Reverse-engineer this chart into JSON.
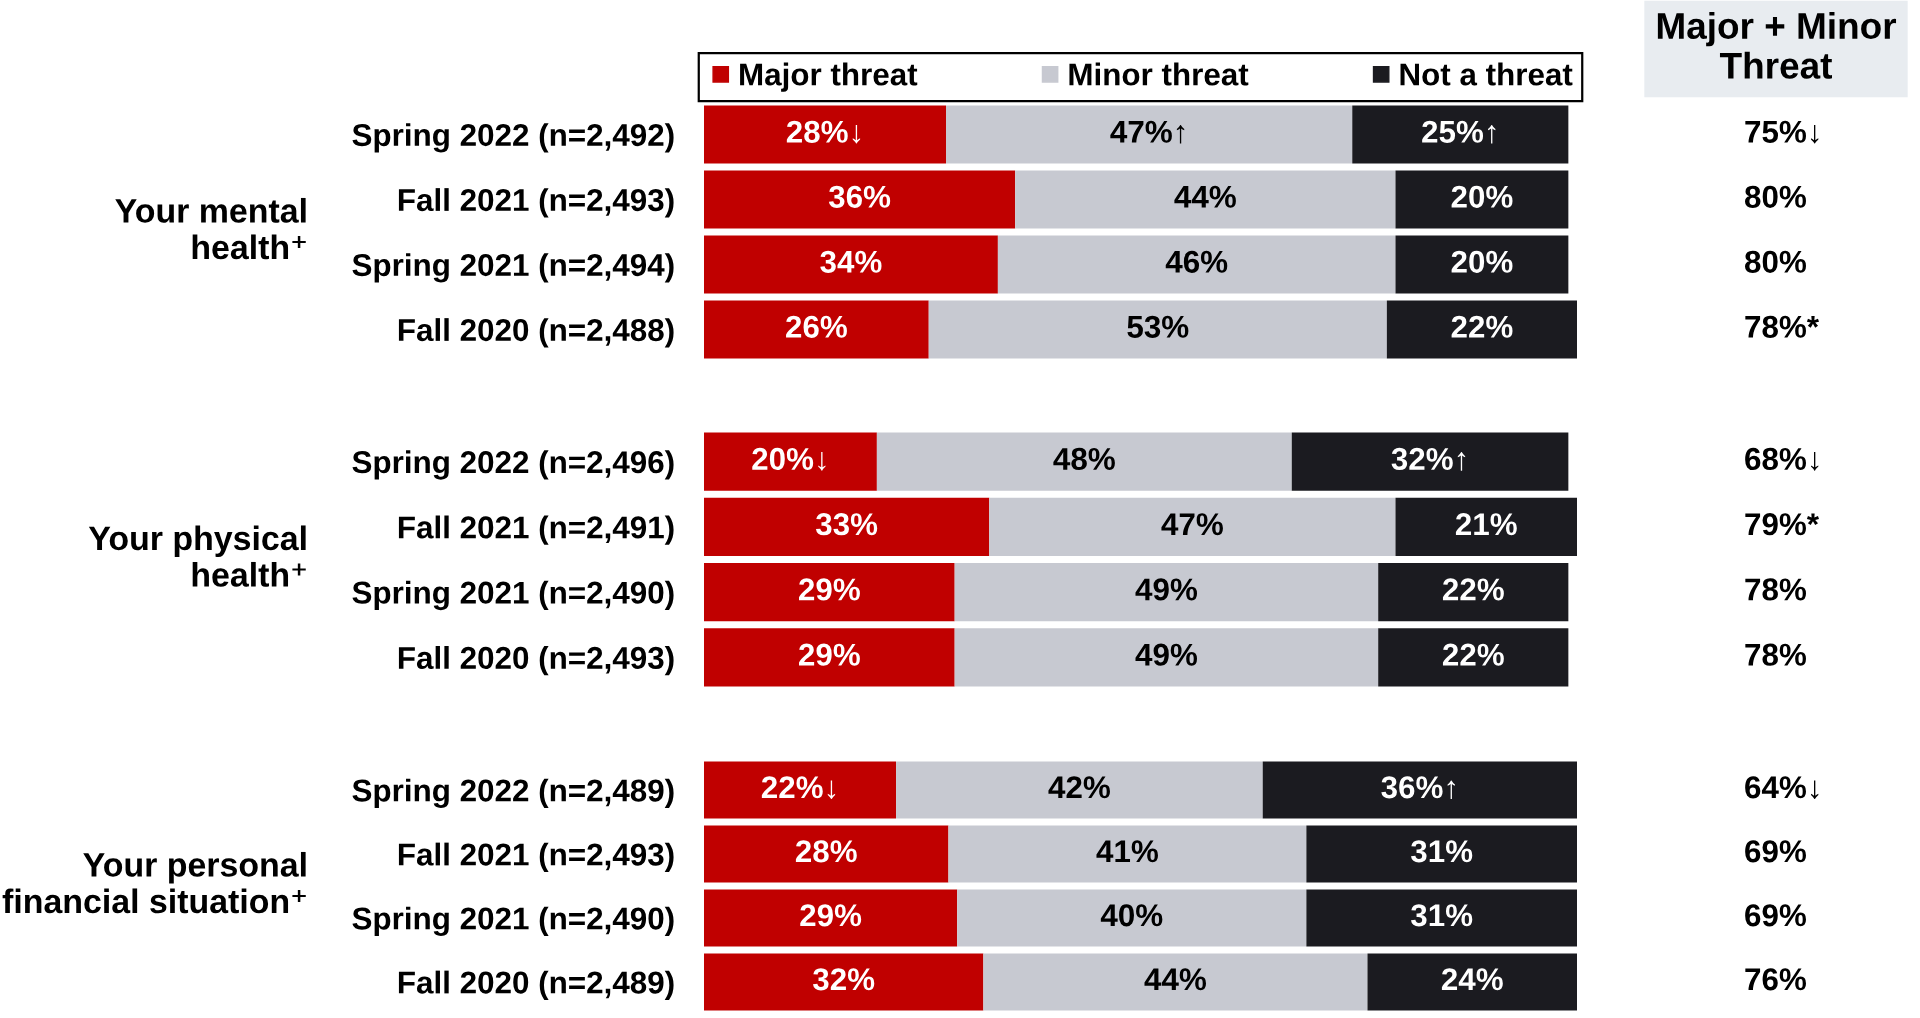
{
  "chart_data": [
    {
      "type": "bar",
      "orientation": "horizontal",
      "stacked": true,
      "ylabel": "Your mental health⁺",
      "categories": [
        "Spring 2022 (n=2,492)",
        "Fall 2021 (n=2,493)",
        "Spring 2021 (n=2,494)",
        "Fall 2020 (n=2,488)"
      ],
      "series": [
        {
          "name": "Major threat",
          "color": "#c00000",
          "values": [
            28,
            36,
            34,
            26
          ],
          "value_labels": [
            "28%↓",
            "36%",
            "34%",
            "26%"
          ]
        },
        {
          "name": "Minor threat",
          "color": "#c7c9d1",
          "values": [
            47,
            44,
            46,
            53
          ],
          "value_labels": [
            "47%↑",
            "44%",
            "46%",
            "53%"
          ]
        },
        {
          "name": "Not a threat",
          "color": "#1b1b20",
          "values": [
            25,
            20,
            20,
            22
          ],
          "value_labels": [
            "25%↑",
            "20%",
            "20%",
            "22%"
          ]
        }
      ],
      "tick_labels": "y",
      "legend": "top",
      "annotations": [
        "Major + Minor Threat",
        "75%↓",
        "80%",
        "80%",
        "78%*"
      ]
    },
    {
      "type": "bar",
      "orientation": "horizontal",
      "stacked": true,
      "ylabel": "Your physical health⁺",
      "categories": [
        "Spring 2022 (n=2,496)",
        "Fall 2021 (n=2,491)",
        "Spring 2021 (n=2,490)",
        "Fall 2020 (n=2,493)"
      ],
      "series": [
        {
          "color": "#c00000",
          "values": [
            20,
            33,
            29,
            29
          ],
          "value_labels": [
            "20%↓",
            "33%",
            "29%",
            "29%"
          ]
        },
        {
          "color": "#c7c9d1",
          "values": [
            48,
            47,
            49,
            49
          ],
          "value_labels": [
            "48%",
            "47%",
            "49%",
            "49%"
          ]
        },
        {
          "color": "#1b1b20",
          "values": [
            32,
            21,
            22,
            22
          ],
          "value_labels": [
            "32%↑",
            "21%",
            "22%",
            "22%"
          ]
        }
      ],
      "tick_labels": "y",
      "annotations": [
        "68%↓",
        "79%*",
        "78%",
        "78%"
      ]
    },
    {
      "type": "bar",
      "orientation": "horizontal",
      "stacked": true,
      "ylabel": "Your personal financial situation⁺",
      "categories": [
        "Spring 2022 (n=2,489)",
        "Fall 2021 (n=2,493)",
        "Spring 2021 (n=2,490)",
        "Fall 2020 (n=2,489)"
      ],
      "series": [
        {
          "color": "#c00000",
          "values": [
            22,
            28,
            29,
            32
          ],
          "value_labels": [
            "22%↓",
            "28%",
            "29%",
            "32%"
          ]
        },
        {
          "color": "#c7c9d1",
          "values": [
            42,
            41,
            40,
            44
          ],
          "value_labels": [
            "42%",
            "41%",
            "40%",
            "44%"
          ]
        },
        {
          "color": "#1b1b20",
          "values": [
            36,
            31,
            31,
            24
          ],
          "value_labels": [
            "36%↑",
            "31%",
            "31%",
            "24%"
          ]
        }
      ],
      "tick_labels": "y",
      "annotations": [
        "64%↓",
        "69%",
        "69%",
        "76%"
      ]
    }
  ]
}
